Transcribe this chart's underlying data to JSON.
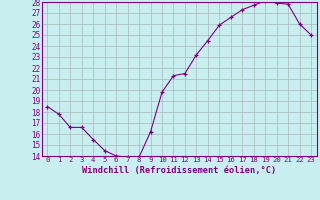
{
  "x": [
    0,
    1,
    2,
    3,
    4,
    5,
    6,
    7,
    8,
    9,
    10,
    11,
    12,
    13,
    14,
    15,
    16,
    17,
    18,
    19,
    20,
    21,
    22,
    23
  ],
  "y": [
    18.5,
    17.8,
    16.6,
    16.6,
    15.5,
    14.5,
    14.0,
    13.9,
    13.9,
    16.2,
    19.8,
    21.3,
    21.5,
    23.2,
    24.5,
    25.9,
    26.6,
    27.3,
    27.7,
    28.1,
    27.9,
    27.8,
    26.0,
    25.0
  ],
  "ylim": [
    14,
    28
  ],
  "yticks": [
    14,
    15,
    16,
    17,
    18,
    19,
    20,
    21,
    22,
    23,
    24,
    25,
    26,
    27,
    28
  ],
  "xticks": [
    0,
    1,
    2,
    3,
    4,
    5,
    6,
    7,
    8,
    9,
    10,
    11,
    12,
    13,
    14,
    15,
    16,
    17,
    18,
    19,
    20,
    21,
    22,
    23
  ],
  "xlabel": "Windchill (Refroidissement éolien,°C)",
  "line_color": "#800080",
  "marker": "+",
  "bg_color": "#c8eef0",
  "grid_color": "#aab8b8",
  "font_color": "#800080",
  "spine_color": "#800080"
}
